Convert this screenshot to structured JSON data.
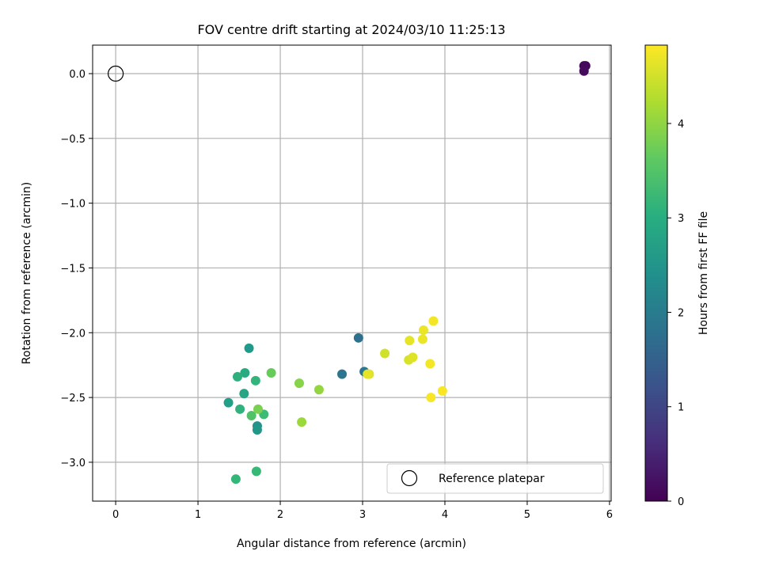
{
  "chart_data": {
    "type": "scatter",
    "title": "FOV centre drift starting at 2024/03/10 11:25:13",
    "xlabel": "Angular distance from reference (arcmin)",
    "ylabel": "Rotation from reference (arcmin)",
    "xlim": [
      -0.28,
      6.02
    ],
    "ylim": [
      -3.3,
      0.22
    ],
    "xticks": [
      0,
      1,
      2,
      3,
      4,
      5,
      6
    ],
    "xtick_labels": [
      "0",
      "1",
      "2",
      "3",
      "4",
      "5",
      "6"
    ],
    "yticks": [
      0.0,
      -0.5,
      -1.0,
      -1.5,
      -2.0,
      -2.5,
      -3.0
    ],
    "ytick_labels": [
      "0.0",
      "−0.5",
      "−1.0",
      "−1.5",
      "−2.0",
      "−2.5",
      "−3.0"
    ],
    "grid": true,
    "colormap": "viridis",
    "colorbar": {
      "label": "Hours from first FF file",
      "range": [
        0,
        4.83
      ],
      "ticks": [
        0,
        1,
        2,
        3,
        4
      ],
      "tick_labels": [
        "0",
        "1",
        "2",
        "3",
        "4"
      ]
    },
    "legend": {
      "placement": "lower right",
      "entries": [
        {
          "label": "Reference platepar",
          "marker": "hollow-circle"
        }
      ]
    },
    "reference_point": {
      "x": 0.0,
      "y": 0.0
    },
    "series": [
      {
        "marker": "filled-circle",
        "points": [
          {
            "x": 5.71,
            "y": 0.06,
            "c": 0.05
          },
          {
            "x": 5.69,
            "y": 0.06,
            "c": 0.1
          },
          {
            "x": 5.69,
            "y": 0.02,
            "c": 0.15
          },
          {
            "x": 2.95,
            "y": -2.04,
            "c": 1.8
          },
          {
            "x": 2.75,
            "y": -2.32,
            "c": 1.9
          },
          {
            "x": 3.02,
            "y": -2.3,
            "c": 1.9
          },
          {
            "x": 1.62,
            "y": -2.12,
            "c": 2.6
          },
          {
            "x": 1.37,
            "y": -2.54,
            "c": 2.7
          },
          {
            "x": 1.72,
            "y": -2.72,
            "c": 2.45
          },
          {
            "x": 1.72,
            "y": -2.75,
            "c": 2.55
          },
          {
            "x": 1.56,
            "y": -2.47,
            "c": 2.85
          },
          {
            "x": 1.57,
            "y": -2.31,
            "c": 2.95
          },
          {
            "x": 1.48,
            "y": -2.34,
            "c": 3.05
          },
          {
            "x": 1.51,
            "y": -2.59,
            "c": 3.1
          },
          {
            "x": 1.7,
            "y": -2.37,
            "c": 3.15
          },
          {
            "x": 1.46,
            "y": -3.13,
            "c": 3.2
          },
          {
            "x": 1.71,
            "y": -3.07,
            "c": 3.25
          },
          {
            "x": 1.8,
            "y": -2.63,
            "c": 3.3
          },
          {
            "x": 1.65,
            "y": -2.64,
            "c": 3.5
          },
          {
            "x": 1.89,
            "y": -2.31,
            "c": 3.7
          },
          {
            "x": 1.73,
            "y": -2.59,
            "c": 3.85
          },
          {
            "x": 2.23,
            "y": -2.39,
            "c": 3.95
          },
          {
            "x": 2.47,
            "y": -2.44,
            "c": 4.05
          },
          {
            "x": 2.26,
            "y": -2.69,
            "c": 4.1
          },
          {
            "x": 3.27,
            "y": -2.16,
            "c": 4.5
          },
          {
            "x": 3.08,
            "y": -2.32,
            "c": 4.6
          },
          {
            "x": 3.06,
            "y": -2.32,
            "c": 4.65
          },
          {
            "x": 3.56,
            "y": -2.21,
            "c": 4.55
          },
          {
            "x": 3.61,
            "y": -2.19,
            "c": 4.6
          },
          {
            "x": 3.57,
            "y": -2.06,
            "c": 4.65
          },
          {
            "x": 3.74,
            "y": -1.98,
            "c": 4.7
          },
          {
            "x": 3.73,
            "y": -2.05,
            "c": 4.7
          },
          {
            "x": 3.86,
            "y": -1.91,
            "c": 4.75
          },
          {
            "x": 3.82,
            "y": -2.24,
            "c": 4.75
          },
          {
            "x": 3.83,
            "y": -2.5,
            "c": 4.8
          },
          {
            "x": 3.97,
            "y": -2.45,
            "c": 4.8
          }
        ]
      }
    ]
  }
}
